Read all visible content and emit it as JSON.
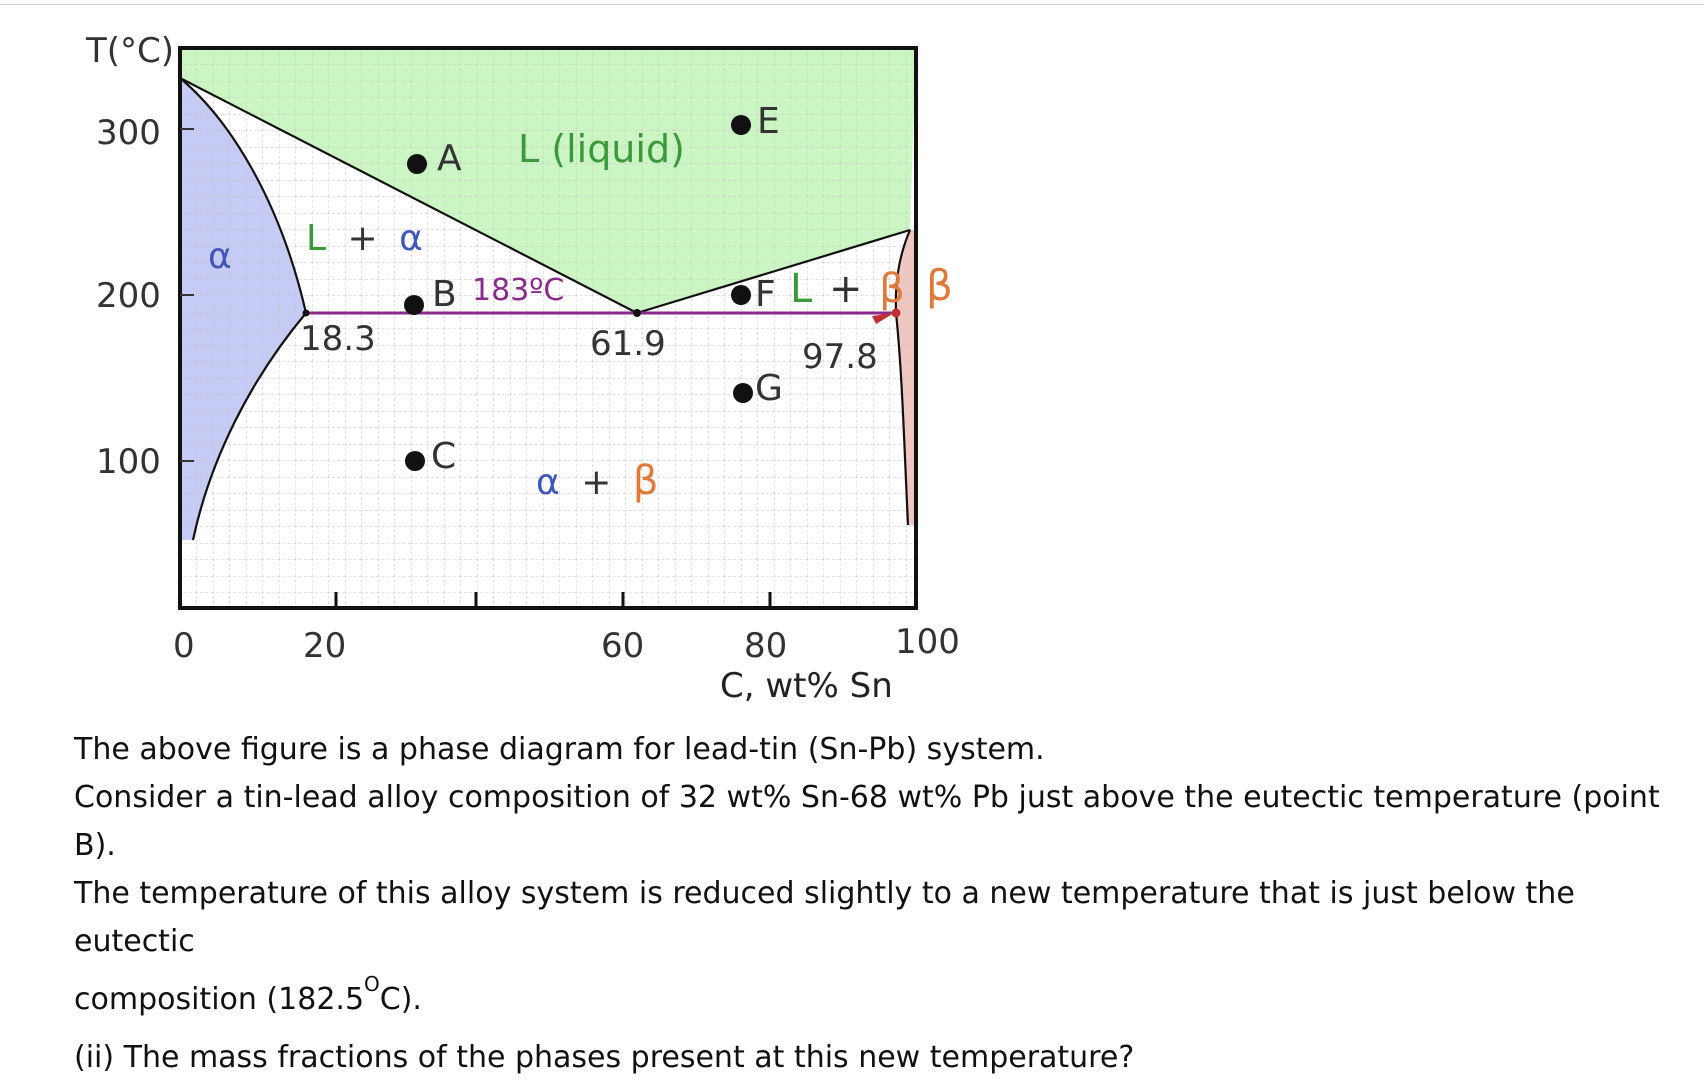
{
  "diagram": {
    "y_axis_title": "T(°C)",
    "y_ticks": [
      "300",
      "200",
      "100"
    ],
    "x_ticks": [
      "0",
      "20",
      "60",
      "80",
      "100"
    ],
    "x_axis_title": "C, wt% Sn",
    "points": [
      {
        "id": "A",
        "label": "A"
      },
      {
        "id": "B",
        "label": "B"
      },
      {
        "id": "C",
        "label": "C"
      },
      {
        "id": "E",
        "label": "E"
      },
      {
        "id": "F",
        "label": "F"
      },
      {
        "id": "G",
        "label": "G"
      }
    ],
    "composition_labels": [
      "18.3",
      "61.9",
      "97.8"
    ],
    "eutectic_temp_label": "183ºC",
    "phase_labels": {
      "liquid": "L (liquid)",
      "l_plus_alpha_L": "L",
      "l_plus_alpha_plus": "+",
      "l_plus_alpha_alpha": "α",
      "alpha": "α",
      "alpha_beta_alpha": "α",
      "alpha_beta_plus": "+",
      "alpha_beta_beta": "β",
      "l_plus_beta_L": "L",
      "l_plus_beta_plus": "+",
      "l_plus_beta_beta": "β",
      "beta": "β"
    },
    "colors": {
      "liquid_region": "#ccf5c4",
      "alpha_region": "#c6cbf5",
      "beta_region": "#f0c6c0",
      "eutectic_line": "#8a2a8a",
      "grid": "#c8c8c8"
    }
  },
  "question": {
    "line1": "The above figure is a phase diagram for lead-tin (Sn-Pb) system.",
    "line2": "Consider a tin-lead alloy composition of 32 wt% Sn-68 wt% Pb just above the eutectic temperature (point B).",
    "line3": "The temperature of this alloy system is reduced slightly to a new temperature that is just below the eutectic",
    "line4_prefix": "composition (182.5",
    "line4_sup": "O",
    "line4_suffix": "C).",
    "line5": "(ii) The mass fractions of the phases present at this new temperature?"
  }
}
